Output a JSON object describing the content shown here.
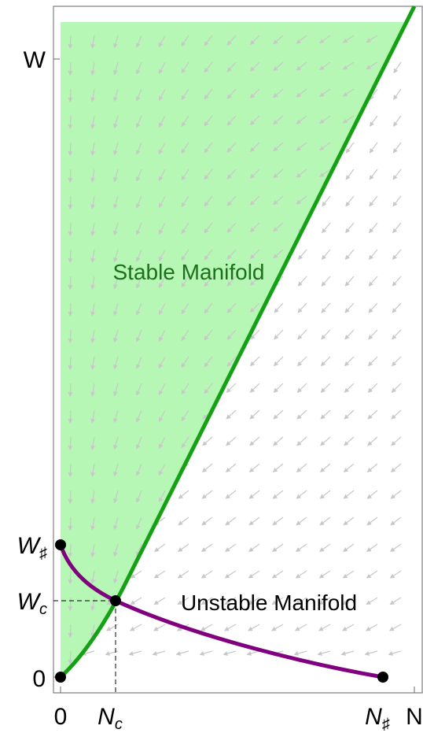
{
  "axes": {
    "x_labels": [
      {
        "main": "0"
      },
      {
        "main": "N",
        "sub": "c"
      },
      {
        "main": "N",
        "sub": "♯"
      },
      {
        "main": "N"
      }
    ],
    "y_labels": [
      {
        "main": "W"
      },
      {
        "main": "W",
        "sub": "♯"
      },
      {
        "main": "W",
        "sub": "c"
      },
      {
        "main": "0"
      }
    ]
  },
  "regions": {
    "stable": "Stable Manifold",
    "unstable": "Unstable Manifold"
  }
}
